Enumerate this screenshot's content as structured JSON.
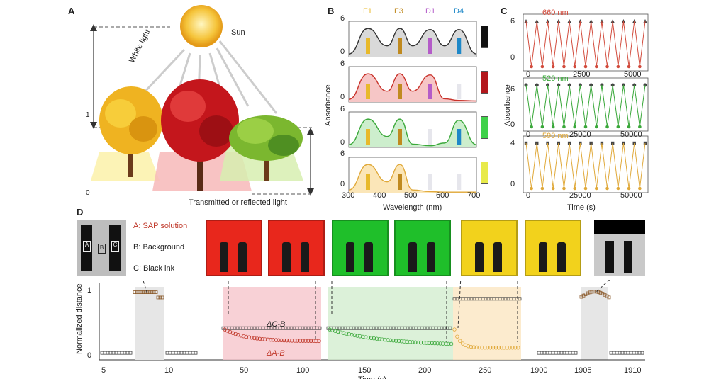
{
  "panel_a": {
    "label": "A",
    "sun_label": "Sun",
    "white_light_label": "White light",
    "transmitted_label": "Transmitted or reflected light",
    "axis_ticks": [
      "1",
      "0"
    ]
  },
  "panel_b": {
    "label": "B",
    "peak_labels": [
      "F1",
      "F3",
      "D1",
      "D4"
    ],
    "peak_colors": [
      "#e8b92a",
      "#c08a1f",
      "#b45cc8",
      "#1e88c8"
    ],
    "ylabel": "Absorbance",
    "xlabel": "Wavelength (nm)",
    "xticks": [
      "300",
      "400",
      "500",
      "600",
      "700"
    ],
    "rows": [
      {
        "top": "6",
        "bottom": "0",
        "fill": "#d9d9d9",
        "stroke": "#333333",
        "swatch": "#111111"
      },
      {
        "top": "6",
        "bottom": "0",
        "fill": "#f6c6c6",
        "stroke": "#c8322a",
        "swatch": "#b3171c"
      },
      {
        "top": "6",
        "bottom": "0",
        "fill": "#cdeecd",
        "stroke": "#3aa83a",
        "swatch": "#3fd14a"
      },
      {
        "top": "6",
        "bottom": "0",
        "fill": "#fbe6b8",
        "stroke": "#e0a93a",
        "swatch": "#e8ea4a"
      }
    ]
  },
  "panel_c": {
    "label": "C",
    "ylabel": "Absorbance",
    "xlabel": "Time (s)",
    "rows": [
      {
        "title": "660 nm",
        "color": "#d24b3c",
        "top_tick": "6",
        "bottom_tick": "0",
        "xticks": [
          "0",
          "2500",
          "5000"
        ],
        "marker_color": "#444444"
      },
      {
        "title": "520 nm",
        "color": "#3aa83a",
        "top_tick": "6",
        "bottom_tick": "0",
        "xticks": [
          "0",
          "25000",
          "50000"
        ],
        "marker_color": "#444444"
      },
      {
        "title": "590 nm",
        "color": "#e0a93a",
        "top_tick": "4",
        "bottom_tick": "0",
        "xticks": [
          "0",
          "25000",
          "50000"
        ],
        "marker_color": "#444444"
      }
    ]
  },
  "panel_d": {
    "label": "D",
    "legend": [
      "A: SAP solution",
      "B: Background",
      "C: Black ink"
    ],
    "legend_color": "#c0392b",
    "photo_letters": [
      "A",
      "B",
      "C"
    ],
    "ylabel": "Normalized distance",
    "yticks": [
      "1",
      "0"
    ],
    "xticks": [
      "5",
      "10",
      "50",
      "100",
      "150",
      "200",
      "250",
      "1900",
      "1905",
      "1910"
    ],
    "xlabel": "Time (s)",
    "delta_cb": "ΔC-B",
    "delta_ab": "ΔA-B",
    "photo_colors": [
      "#e8271c",
      "#e8271c",
      "#1fbf2a",
      "#1fbf2a",
      "#f2d21c",
      "#f2d21c"
    ]
  },
  "chart_data": [
    {
      "type": "line",
      "title": "",
      "xlabel": "Wavelength (nm)",
      "ylabel": "Absorbance",
      "x": [
        300,
        360,
        420,
        460,
        500,
        555,
        600,
        645,
        700
      ],
      "series": [
        {
          "values": [
            0.5,
            5.2,
            2.0,
            5.2,
            2.0,
            5.0,
            2.0,
            5.0,
            0.5
          ]
        },
        {
          "values": [
            0.5,
            5.2,
            2.0,
            5.2,
            2.0,
            5.0,
            0.6,
            0.3,
            0.2
          ]
        },
        {
          "values": [
            0.5,
            5.2,
            2.0,
            5.2,
            0.6,
            0.3,
            0.8,
            5.0,
            0.5
          ]
        },
        {
          "values": [
            0.5,
            5.2,
            2.0,
            5.2,
            0.5,
            0.2,
            0.1,
            0.1,
            0.1
          ]
        }
      ],
      "ylim": [
        0,
        6
      ],
      "xlim": [
        300,
        700
      ]
    },
    {
      "type": "line",
      "title": "",
      "xlabel": "Time (s)",
      "ylabel": "Normalized distance",
      "series": [
        {
          "name": "ΔC-B",
          "x": [
            5,
            7,
            8,
            9,
            10,
            11,
            40,
            60,
            80,
            100,
            110,
            130,
            150,
            170,
            190,
            210,
            230,
            250,
            270,
            290,
            1903,
            1905,
            1906,
            1907,
            1908,
            1910
          ],
          "values": [
            0.02,
            0.02,
            0.95,
            0.96,
            0.88,
            0.03,
            0.4,
            0.4,
            0.4,
            0.4,
            0.4,
            0.4,
            0.4,
            0.4,
            0.4,
            0.4,
            0.85,
            0.85,
            0.85,
            0.85,
            0.02,
            0.85,
            0.92,
            0.95,
            0.85,
            0.02
          ]
        },
        {
          "name": "ΔA-B",
          "x": [
            40,
            60,
            80,
            100,
            110,
            130,
            150,
            170,
            190,
            210,
            230,
            250,
            270,
            290
          ],
          "values": [
            0.38,
            0.28,
            0.22,
            0.2,
            0.2,
            0.38,
            0.3,
            0.22,
            0.17,
            0.15,
            0.12,
            0.1,
            0.1,
            0.1
          ]
        }
      ],
      "ylim": [
        0,
        1
      ]
    }
  ]
}
